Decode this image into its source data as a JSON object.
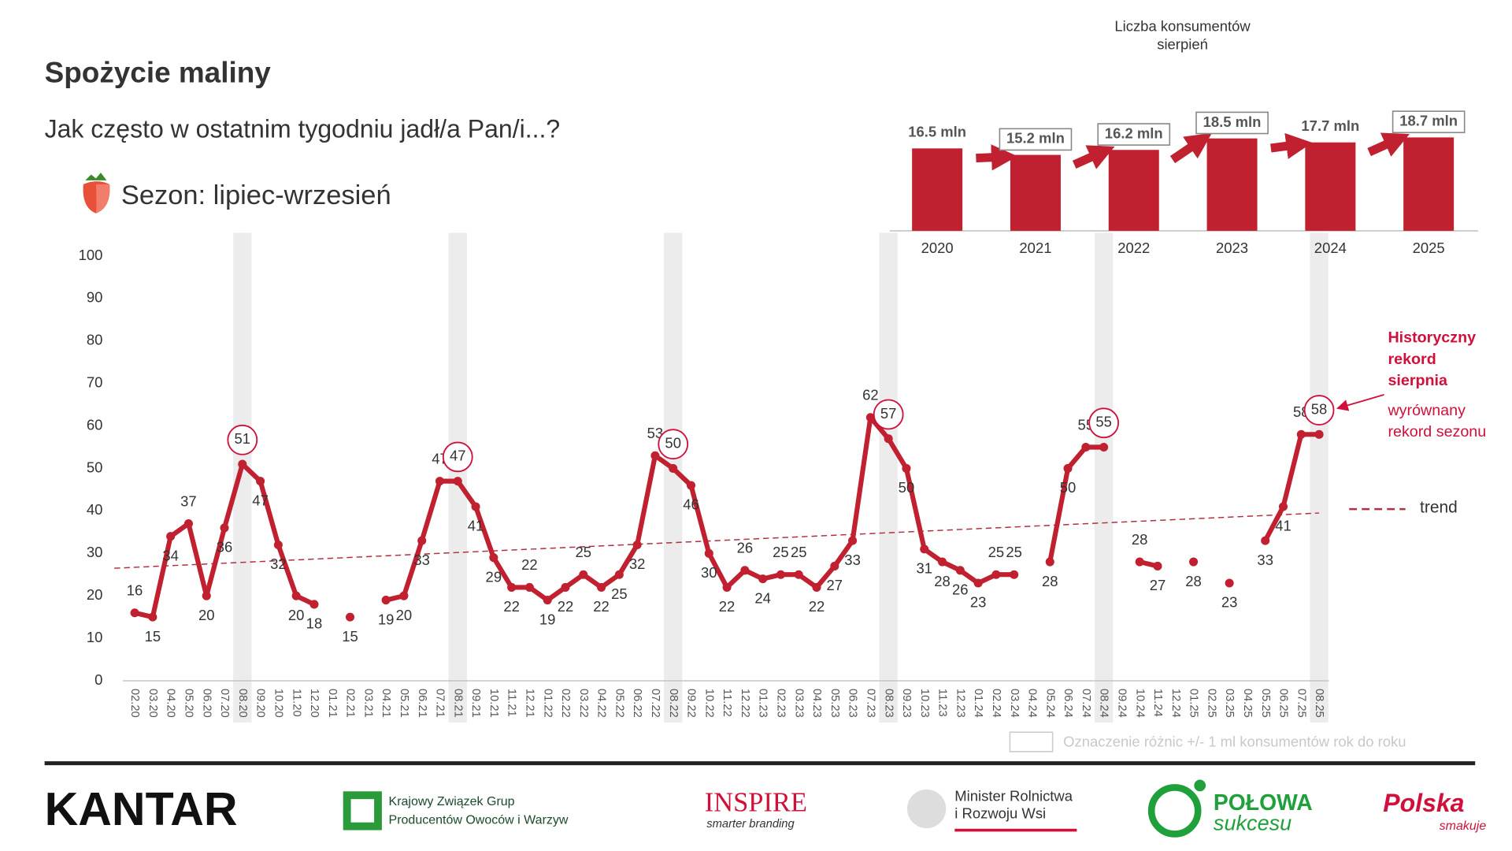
{
  "header": {
    "title": "Spożycie maliny",
    "subtitle": "Jak często w ostatnim tygodniu jadł/a Pan/i...?",
    "season": "Sezon: lipiec-wrzesień"
  },
  "chart_data": [
    {
      "type": "line",
      "categories": [
        "02.20",
        "03.20",
        "04.20",
        "05.20",
        "06.20",
        "07.20",
        "08.20",
        "09.20",
        "10.20",
        "11.20",
        "12.20",
        "01.21",
        "02.21",
        "03.21",
        "04.21",
        "05.21",
        "06.21",
        "07.21",
        "08.21",
        "09.21",
        "10.21",
        "11.21",
        "12.21",
        "01.22",
        "02.22",
        "03.22",
        "04.22",
        "05.22",
        "06.22",
        "07.22",
        "08.22",
        "09.22",
        "10.22",
        "11.22",
        "12.22",
        "01.23",
        "02.23",
        "03.23",
        "04.23",
        "05.23",
        "06.23",
        "07.23",
        "08.23",
        "09.23",
        "10.23",
        "11.23",
        "12.23",
        "01.24",
        "02.24",
        "03.24",
        "04.24",
        "05.24",
        "06.24",
        "07.24",
        "08.24",
        "09.24",
        "10.24",
        "11.24",
        "12.24",
        "01.25",
        "02.25",
        "03.25",
        "04.25",
        "05.25",
        "06.25",
        "07.25",
        "08.25"
      ],
      "values": [
        16,
        15,
        34,
        37,
        20,
        36,
        51,
        47,
        32,
        20,
        18,
        null,
        15,
        null,
        19,
        20,
        33,
        47,
        47,
        41,
        29,
        22,
        22,
        19,
        22,
        25,
        22,
        25,
        32,
        53,
        50,
        46,
        30,
        22,
        26,
        24,
        25,
        25,
        22,
        27,
        33,
        62,
        57,
        50,
        31,
        28,
        26,
        23,
        25,
        25,
        null,
        28,
        50,
        55,
        55,
        null,
        28,
        27,
        null,
        28,
        null,
        23,
        null,
        33,
        41,
        58,
        58
      ],
      "color": "#c0202f",
      "ylim": [
        0,
        100
      ],
      "yticks": [
        0,
        10,
        20,
        30,
        40,
        50,
        60,
        70,
        80,
        90,
        100
      ],
      "highlight_indices": [
        6,
        18,
        30,
        42,
        54,
        66
      ],
      "trend": {
        "label": "trend",
        "values": [
          26.5,
          39.5
        ],
        "color": "#b03040"
      }
    },
    {
      "type": "bar",
      "title": [
        "Liczba konsumentów",
        "sierpień"
      ],
      "categories": [
        "2020",
        "2021",
        "2022",
        "2023",
        "2024",
        "2025"
      ],
      "values": [
        16.5,
        15.2,
        16.2,
        18.5,
        17.7,
        18.7
      ],
      "value_labels": [
        "16.5 mln",
        "15.2 mln",
        "16.2 mln",
        "18.5 mln",
        "17.7 mln",
        "18.7 mln"
      ],
      "color": "#c0202f",
      "ylim": [
        0,
        20
      ],
      "boxed_indices": [
        1,
        2,
        3,
        5
      ],
      "box_legend": "Oznaczenie różnic +/- 1 ml konsumentów rok do roku"
    }
  ],
  "annotation": {
    "bold": [
      "Historyczny",
      "rekord",
      "sierpnia"
    ],
    "normal": [
      "wyrównany",
      "rekord sezonu"
    ]
  },
  "footer": {
    "kantar": "KANTAR",
    "kzgpoiw": [
      "Krajowy Związek Grup",
      "Producentów Owoców i Warzyw"
    ],
    "inspire": "INSPIRE",
    "inspire_tag": "smarter branding",
    "minister": [
      "Minister Rolnictwa",
      "i Rozwoju Wsi"
    ],
    "polowa": "POŁOWA",
    "polowa_tag": "sukcesu",
    "polska": "Polska",
    "polska_tag": "smakuje"
  }
}
